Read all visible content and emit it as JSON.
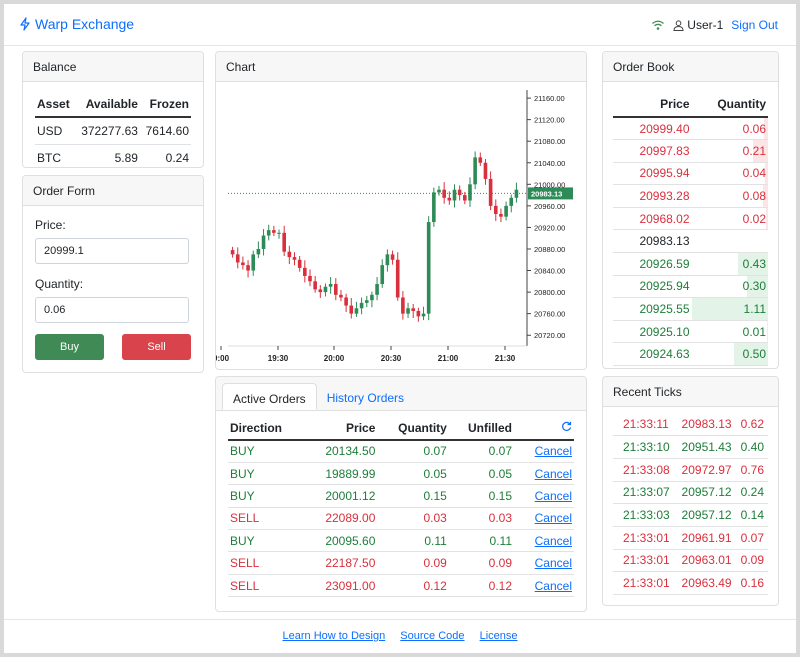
{
  "navbar": {
    "brand": "Warp Exchange",
    "user": "User-1",
    "signout": "Sign Out"
  },
  "balance": {
    "title": "Balance",
    "headers": [
      "Asset",
      "Available",
      "Frozen"
    ],
    "rows": [
      [
        "USD",
        "372277.63",
        "7614.60"
      ],
      [
        "BTC",
        "5.89",
        "0.24"
      ]
    ]
  },
  "order_form": {
    "title": "Order Form",
    "price_label": "Price:",
    "price_value": "20999.1",
    "qty_label": "Quantity:",
    "qty_value": "0.06",
    "buy": "Buy",
    "sell": "Sell"
  },
  "chart": {
    "title": "Chart",
    "last_price_label": "20983.13",
    "colors": {
      "up": "#2e8b57",
      "down": "#d9303d"
    }
  },
  "orders": {
    "tab_active": "Active Orders",
    "tab_history": "History Orders",
    "headers": [
      "Direction",
      "Price",
      "Quantity",
      "Unfilled"
    ],
    "cancel_label": "Cancel",
    "rows": [
      {
        "dir": "BUY",
        "price": "20134.50",
        "qty": "0.07",
        "unfilled": "0.07"
      },
      {
        "dir": "BUY",
        "price": "19889.99",
        "qty": "0.05",
        "unfilled": "0.05"
      },
      {
        "dir": "BUY",
        "price": "20001.12",
        "qty": "0.15",
        "unfilled": "0.15"
      },
      {
        "dir": "SELL",
        "price": "22089.00",
        "qty": "0.03",
        "unfilled": "0.03"
      },
      {
        "dir": "BUY",
        "price": "20095.60",
        "qty": "0.11",
        "unfilled": "0.11"
      },
      {
        "dir": "SELL",
        "price": "22187.50",
        "qty": "0.09",
        "unfilled": "0.09"
      },
      {
        "dir": "SELL",
        "price": "23091.00",
        "qty": "0.12",
        "unfilled": "0.12"
      }
    ]
  },
  "order_book": {
    "title": "Order Book",
    "headers": [
      "Price",
      "Quantity"
    ],
    "asks": [
      {
        "price": "20999.40",
        "qty": "0.06",
        "depth": 0.05
      },
      {
        "price": "20997.83",
        "qty": "0.21",
        "depth": 0.19
      },
      {
        "price": "20995.94",
        "qty": "0.04",
        "depth": 0.04
      },
      {
        "price": "20993.28",
        "qty": "0.08",
        "depth": 0.07
      },
      {
        "price": "20968.02",
        "qty": "0.02",
        "depth": 0.02
      }
    ],
    "last": "20983.13",
    "bids": [
      {
        "price": "20926.59",
        "qty": "0.43",
        "depth": 0.39
      },
      {
        "price": "20925.94",
        "qty": "0.30",
        "depth": 0.27
      },
      {
        "price": "20925.55",
        "qty": "1.11",
        "depth": 1.0
      },
      {
        "price": "20925.10",
        "qty": "0.01",
        "depth": 0.01
      },
      {
        "price": "20924.63",
        "qty": "0.50",
        "depth": 0.45
      }
    ]
  },
  "recent_ticks": {
    "title": "Recent Ticks",
    "rows": [
      {
        "time": "21:33:11",
        "price": "20983.13",
        "qty": "0.62",
        "side": "sell"
      },
      {
        "time": "21:33:10",
        "price": "20951.43",
        "qty": "0.40",
        "side": "buy"
      },
      {
        "time": "21:33:08",
        "price": "20972.97",
        "qty": "0.76",
        "side": "sell"
      },
      {
        "time": "21:33:07",
        "price": "20957.12",
        "qty": "0.24",
        "side": "buy"
      },
      {
        "time": "21:33:03",
        "price": "20957.12",
        "qty": "0.14",
        "side": "buy"
      },
      {
        "time": "21:33:01",
        "price": "20961.91",
        "qty": "0.07",
        "side": "sell"
      },
      {
        "time": "21:33:01",
        "price": "20963.01",
        "qty": "0.09",
        "side": "sell"
      },
      {
        "time": "21:33:01",
        "price": "20963.49",
        "qty": "0.16",
        "side": "sell"
      }
    ]
  },
  "footer": {
    "links": [
      "Learn How to Design",
      "Source Code",
      "License"
    ]
  },
  "chart_data": {
    "type": "candlestick",
    "x_ticks": [
      "9:00",
      "19:30",
      "20:00",
      "20:30",
      "21:00",
      "21:30"
    ],
    "y_ticks": [
      21160,
      21120,
      21080,
      21040,
      21000,
      20960,
      20920,
      20880,
      20840,
      20800,
      20760,
      20720
    ],
    "y_tick_labels": [
      "21160.00",
      "21120.00",
      "21080.00",
      "21040.00",
      "21000.00",
      "20960.00",
      "20920.00",
      "20880.00",
      "20840.00",
      "20800.00",
      "20760.00",
      "20720.00"
    ],
    "ylim": [
      20700,
      21175
    ],
    "last_price": 20983.13,
    "closes": [
      20870,
      20855,
      20850,
      20840,
      20870,
      20880,
      20905,
      20915,
      20910,
      20910,
      20875,
      20865,
      20860,
      20845,
      20830,
      20820,
      20805,
      20800,
      20810,
      20815,
      20795,
      20790,
      20775,
      20760,
      20770,
      20780,
      20785,
      20795,
      20815,
      20850,
      20870,
      20860,
      20790,
      20760,
      20770,
      20765,
      20755,
      20760,
      20930,
      20985,
      20990,
      20975,
      20970,
      20990,
      20980,
      20970,
      21000,
      21050,
      21040,
      21010,
      20960,
      20945,
      20940,
      20960,
      20975,
      20990
    ]
  }
}
